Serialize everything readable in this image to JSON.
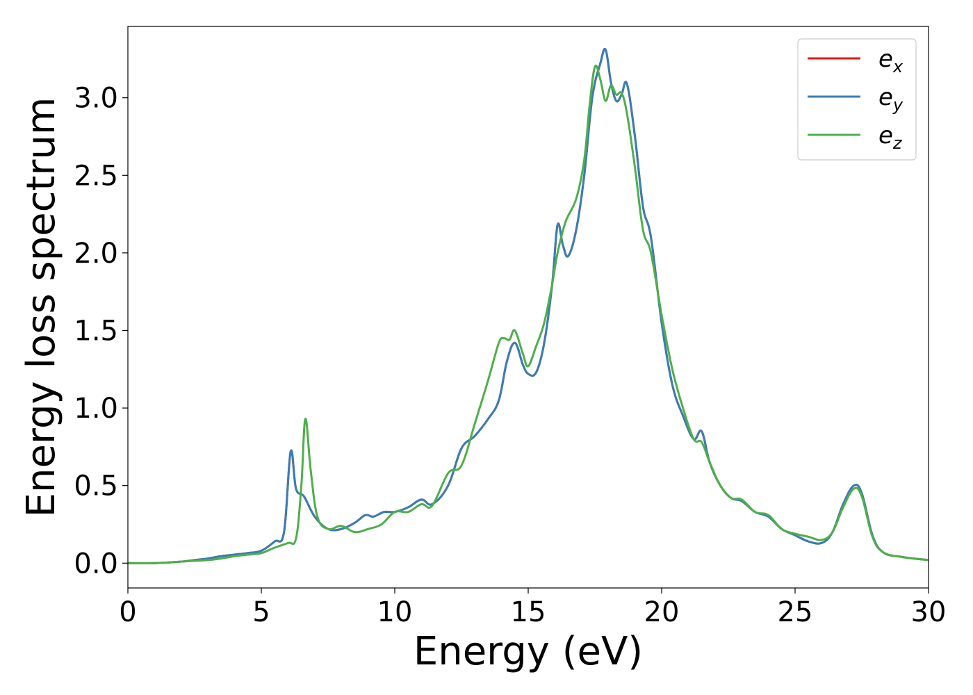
{
  "chart_data": {
    "type": "line",
    "xlabel": "Energy (eV)",
    "ylabel": "Energy loss spectrum",
    "xlim": [
      0,
      30
    ],
    "ylim": [
      -0.16,
      3.46
    ],
    "xticks": [
      "0",
      "5",
      "10",
      "15",
      "20",
      "25",
      "30"
    ],
    "yticks": [
      "0.0",
      "0.5",
      "1.0",
      "1.5",
      "2.0",
      "2.5",
      "3.0"
    ],
    "grid": false,
    "legend": {
      "position": "top-right",
      "entries": [
        {
          "base": "e",
          "sub": "x",
          "color": "#e41a1c"
        },
        {
          "base": "e",
          "sub": "y",
          "color": "#377eb8"
        },
        {
          "base": "e",
          "sub": "z",
          "color": "#4daf4a"
        }
      ]
    },
    "series": [
      {
        "name": "e_x",
        "color": "#e41a1c",
        "x": [
          0,
          1,
          2,
          2.5,
          3,
          3.5,
          4,
          4.5,
          5,
          5.5,
          5.85,
          6.1,
          6.3,
          6.6,
          7,
          7.5,
          8,
          8.5,
          8.9,
          9.2,
          9.6,
          10,
          10.5,
          11,
          11.4,
          12,
          12.5,
          13,
          13.5,
          13.9,
          14.2,
          14.5,
          14.8,
          15,
          15.3,
          15.6,
          15.9,
          16.1,
          16.3,
          16.5,
          16.8,
          17.1,
          17.4,
          17.7,
          17.9,
          18.1,
          18.3,
          18.5,
          18.7,
          19,
          19.3,
          19.6,
          20,
          20.4,
          20.8,
          21.2,
          21.5,
          21.8,
          22.2,
          22.6,
          23,
          23.5,
          24,
          24.5,
          25,
          25.5,
          26,
          26.4,
          26.8,
          27.2,
          27.5,
          27.9,
          28.3,
          29,
          30
        ],
        "y": [
          0.0,
          0.0,
          0.01,
          0.02,
          0.03,
          0.045,
          0.055,
          0.065,
          0.08,
          0.14,
          0.2,
          0.72,
          0.48,
          0.43,
          0.3,
          0.22,
          0.22,
          0.26,
          0.31,
          0.3,
          0.33,
          0.33,
          0.36,
          0.41,
          0.38,
          0.5,
          0.74,
          0.82,
          0.93,
          1.05,
          1.3,
          1.42,
          1.28,
          1.22,
          1.23,
          1.42,
          1.8,
          2.18,
          2.05,
          1.98,
          2.15,
          2.5,
          3.0,
          3.22,
          3.31,
          3.1,
          2.98,
          3.02,
          3.09,
          2.75,
          2.3,
          2.1,
          1.55,
          1.15,
          0.95,
          0.8,
          0.85,
          0.65,
          0.5,
          0.42,
          0.4,
          0.33,
          0.3,
          0.22,
          0.18,
          0.14,
          0.13,
          0.2,
          0.38,
          0.5,
          0.45,
          0.18,
          0.07,
          0.04,
          0.02
        ]
      },
      {
        "name": "e_y",
        "color": "#377eb8",
        "x": [
          0,
          1,
          2,
          2.5,
          3,
          3.5,
          4,
          4.5,
          5,
          5.5,
          5.85,
          6.1,
          6.3,
          6.6,
          7,
          7.5,
          8,
          8.5,
          8.9,
          9.2,
          9.6,
          10,
          10.5,
          11,
          11.4,
          12,
          12.5,
          13,
          13.5,
          13.9,
          14.2,
          14.5,
          14.8,
          15,
          15.3,
          15.6,
          15.9,
          16.1,
          16.3,
          16.5,
          16.8,
          17.1,
          17.4,
          17.7,
          17.9,
          18.1,
          18.3,
          18.5,
          18.7,
          19,
          19.3,
          19.6,
          20,
          20.4,
          20.8,
          21.2,
          21.5,
          21.8,
          22.2,
          22.6,
          23,
          23.5,
          24,
          24.5,
          25,
          25.5,
          26,
          26.4,
          26.8,
          27.2,
          27.5,
          27.9,
          28.3,
          29,
          30
        ],
        "y": [
          0.0,
          0.0,
          0.01,
          0.02,
          0.03,
          0.045,
          0.055,
          0.065,
          0.08,
          0.14,
          0.2,
          0.72,
          0.48,
          0.43,
          0.3,
          0.22,
          0.22,
          0.26,
          0.31,
          0.3,
          0.33,
          0.33,
          0.36,
          0.41,
          0.38,
          0.5,
          0.74,
          0.82,
          0.93,
          1.05,
          1.3,
          1.42,
          1.28,
          1.22,
          1.23,
          1.42,
          1.8,
          2.18,
          2.05,
          1.98,
          2.15,
          2.5,
          3.0,
          3.22,
          3.31,
          3.1,
          2.98,
          3.02,
          3.09,
          2.75,
          2.3,
          2.1,
          1.55,
          1.15,
          0.95,
          0.8,
          0.85,
          0.65,
          0.5,
          0.42,
          0.4,
          0.33,
          0.3,
          0.22,
          0.18,
          0.14,
          0.13,
          0.2,
          0.38,
          0.5,
          0.45,
          0.18,
          0.07,
          0.04,
          0.02
        ]
      },
      {
        "name": "e_z",
        "color": "#4daf4a",
        "x": [
          0,
          1,
          2,
          2.5,
          3,
          3.5,
          4,
          4.5,
          5,
          5.5,
          6,
          6.3,
          6.5,
          6.65,
          6.85,
          7.1,
          7.5,
          8,
          8.5,
          9,
          9.5,
          10,
          10.5,
          11,
          11.4,
          12,
          12.5,
          13,
          13.5,
          13.9,
          14.1,
          14.3,
          14.5,
          14.8,
          15,
          15.3,
          15.6,
          15.9,
          16.1,
          16.4,
          16.8,
          17.1,
          17.3,
          17.5,
          17.7,
          17.9,
          18.1,
          18.3,
          18.5,
          18.7,
          19,
          19.3,
          19.6,
          20,
          20.4,
          20.8,
          21.2,
          21.5,
          21.8,
          22.2,
          22.6,
          23,
          23.5,
          24,
          24.5,
          25,
          25.5,
          26,
          26.4,
          26.8,
          27.2,
          27.5,
          27.9,
          28.3,
          29,
          30
        ],
        "y": [
          0.0,
          0.0,
          0.01,
          0.015,
          0.02,
          0.03,
          0.045,
          0.055,
          0.065,
          0.1,
          0.13,
          0.16,
          0.5,
          0.93,
          0.6,
          0.3,
          0.22,
          0.24,
          0.2,
          0.22,
          0.25,
          0.33,
          0.33,
          0.38,
          0.37,
          0.58,
          0.63,
          0.9,
          1.18,
          1.42,
          1.45,
          1.44,
          1.5,
          1.35,
          1.27,
          1.4,
          1.55,
          1.8,
          2.0,
          2.2,
          2.35,
          2.6,
          2.95,
          3.2,
          3.12,
          2.98,
          3.08,
          3.02,
          3.03,
          2.9,
          2.55,
          2.15,
          2.0,
          1.6,
          1.25,
          1.0,
          0.8,
          0.78,
          0.65,
          0.5,
          0.42,
          0.41,
          0.33,
          0.31,
          0.22,
          0.19,
          0.17,
          0.15,
          0.2,
          0.36,
          0.48,
          0.43,
          0.17,
          0.07,
          0.04,
          0.02
        ]
      }
    ]
  }
}
